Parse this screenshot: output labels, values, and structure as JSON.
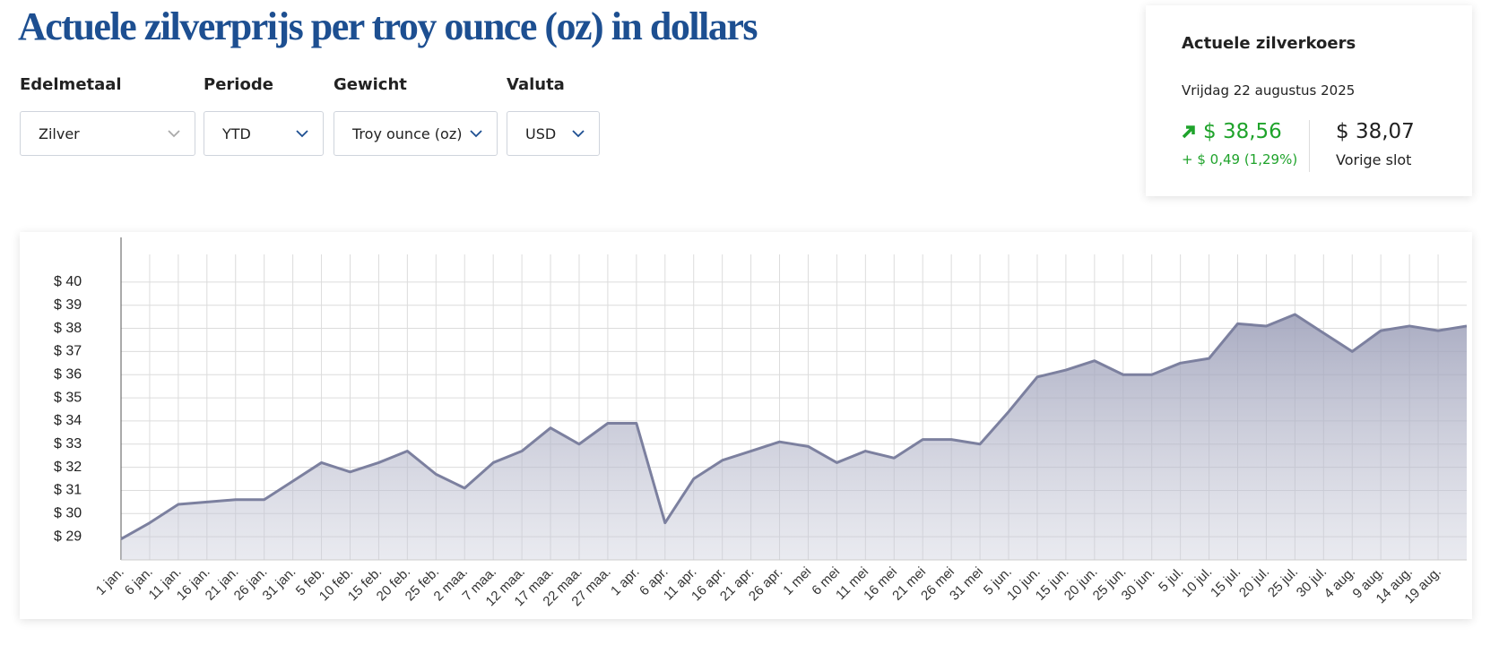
{
  "header": {
    "title": "Actuele zilverprijs per troy ounce (oz) in dollars"
  },
  "filters": [
    {
      "label": "Edelmetaal",
      "value": "Zilver"
    },
    {
      "label": "Periode",
      "value": "YTD"
    },
    {
      "label": "Gewicht",
      "value": "Troy ounce (oz)"
    },
    {
      "label": "Valuta",
      "value": "USD"
    }
  ],
  "quote": {
    "title": "Actuele zilverkoers",
    "date": "Vrijdag 22 augustus 2025",
    "price": "$ 38,56",
    "change": "+ $ 0,49 (1,29%)",
    "previous_price": "$ 38,07",
    "previous_label": "Vorige slot"
  },
  "chart_data": {
    "type": "area",
    "color": "#7c809f",
    "grid": true,
    "categories": [
      "1 jan.",
      "6 jan.",
      "11 jan.",
      "16 jan.",
      "21 jan.",
      "26 jan.",
      "31 jan.",
      "5 feb.",
      "10 feb.",
      "15 feb.",
      "20 feb.",
      "25 feb.",
      "2 maa.",
      "7 maa.",
      "12 maa.",
      "17 maa.",
      "22 maa.",
      "27 maa.",
      "1 apr.",
      "6 apr.",
      "11 apr.",
      "16 apr.",
      "21 apr.",
      "26 apr.",
      "1 mei",
      "6 mei",
      "11 mei",
      "16 mei",
      "21 mei",
      "26 mei",
      "31 mei",
      "5 jun.",
      "10 jun.",
      "15 jun.",
      "20 jun.",
      "25 jun.",
      "30 jun.",
      "5 jul.",
      "10 jul.",
      "15 jul.",
      "20 jul.",
      "25 jul.",
      "30 jul.",
      "4 aug.",
      "9 aug.",
      "14 aug.",
      "19 aug.",
      null
    ],
    "values": [
      28.9,
      29.6,
      30.4,
      30.5,
      30.6,
      30.6,
      31.4,
      32.2,
      31.8,
      32.2,
      32.7,
      31.7,
      31.1,
      32.2,
      32.7,
      33.7,
      33.0,
      33.9,
      33.9,
      29.6,
      31.5,
      32.3,
      32.7,
      33.1,
      32.9,
      32.2,
      32.7,
      32.4,
      33.2,
      33.2,
      33.0,
      34.4,
      35.9,
      36.2,
      36.6,
      36.0,
      36.0,
      36.5,
      36.7,
      38.2,
      38.1,
      38.6,
      37.8,
      37.0,
      37.9,
      38.1,
      37.9,
      38.1
    ],
    "ylim": [
      28,
      41
    ],
    "yticks": [
      {
        "value": 29,
        "label": "$ 29"
      },
      {
        "value": 30,
        "label": "$ 30"
      },
      {
        "value": 31,
        "label": "$ 31"
      },
      {
        "value": 32,
        "label": "$ 32"
      },
      {
        "value": 33,
        "label": "$ 33"
      },
      {
        "value": 34,
        "label": "$ 34"
      },
      {
        "value": 35,
        "label": "$ 35"
      },
      {
        "value": 36,
        "label": "$ 36"
      },
      {
        "value": 37,
        "label": "$ 37"
      },
      {
        "value": 38,
        "label": "$ 38"
      },
      {
        "value": 39,
        "label": "$ 39"
      },
      {
        "value": 40,
        "label": "$ 40"
      }
    ]
  }
}
